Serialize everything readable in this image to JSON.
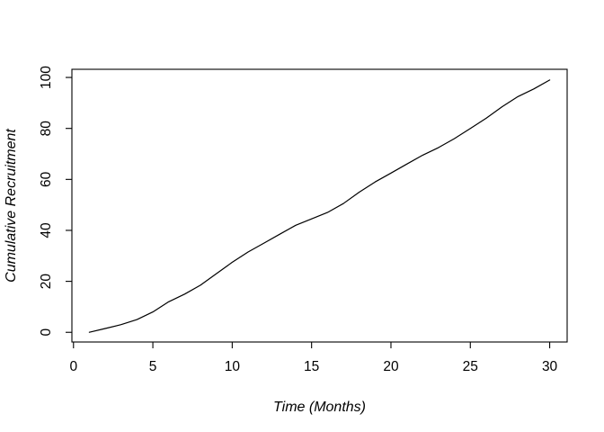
{
  "figure": {
    "kind": "r-base-graphics-line-plot",
    "background_color": "#ffffff"
  },
  "chart_data": {
    "type": "line",
    "title": "",
    "xlabel": "Time (Months)",
    "ylabel": "Cumulative Recruitment",
    "x": [
      1,
      2,
      3,
      4,
      5,
      6,
      7,
      8,
      9,
      10,
      11,
      12,
      13,
      14,
      15,
      16,
      17,
      18,
      19,
      20,
      21,
      22,
      23,
      24,
      25,
      26,
      27,
      28,
      29,
      30
    ],
    "series": [
      {
        "name": "Cumulative recruitment",
        "values": [
          0,
          1.5,
          3,
          5,
          8,
          12,
          15,
          18.5,
          23,
          27.5,
          31.5,
          35,
          38.5,
          42,
          44.5,
          47,
          50.5,
          55,
          59,
          62.5,
          66,
          69.5,
          72.5,
          76,
          80,
          84,
          88.5,
          92.5,
          95.5,
          99
        ]
      }
    ],
    "x_ticks": [
      0,
      5,
      10,
      15,
      20,
      25,
      30
    ],
    "y_ticks": [
      0,
      20,
      40,
      60,
      80,
      100
    ],
    "xlim": [
      -0.1,
      31.1
    ],
    "ylim": [
      -3.8,
      103.2
    ],
    "grid": false,
    "legend": "none",
    "line_color": "#000000",
    "axis_color": "#000000",
    "background_color": "#ffffff"
  }
}
